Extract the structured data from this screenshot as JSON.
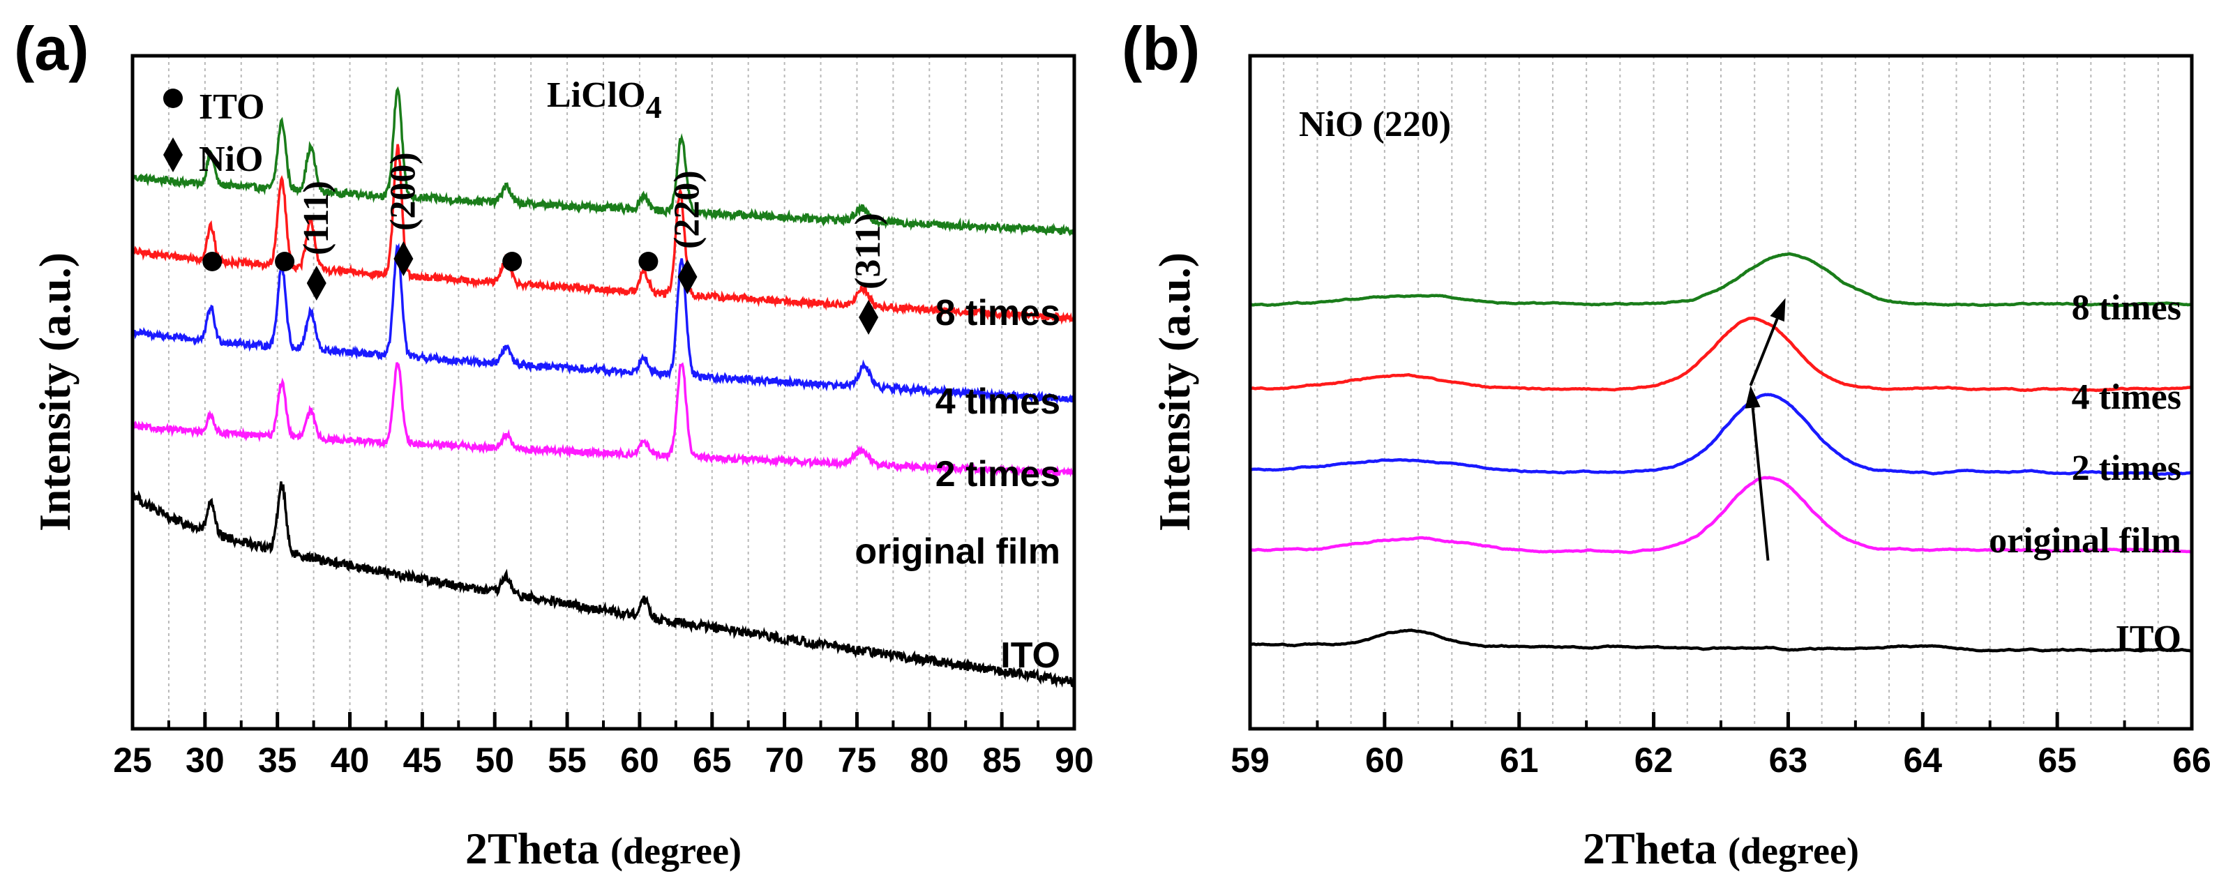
{
  "panels": [
    {
      "panel_label": "(a)",
      "type": "line",
      "xlabel_main": "2Theta",
      "xlabel_unit": "(degree)",
      "ylabel": "Intensity (a.u.)",
      "xlim": [
        25,
        90
      ],
      "ylim": [
        0,
        100
      ],
      "xticks": [
        "25",
        "30",
        "35",
        "40",
        "45",
        "50",
        "55",
        "60",
        "65",
        "70",
        "75",
        "80",
        "85",
        "90"
      ],
      "grid": "vertical dotted at every 2.5 degrees",
      "annotation_text": "LiClO",
      "annotation_sub": "4",
      "legend": [
        {
          "symbol": "circle",
          "label": "ITO"
        },
        {
          "symbol": "diamond",
          "label": "NiO"
        }
      ],
      "series": [
        {
          "name": "8 times",
          "color": "#1a7d1a",
          "baseline": [
            82,
            74
          ],
          "noise": 0.55,
          "peaks": [
            [
              30.4,
              4.5,
              0.25
            ],
            [
              35.3,
              10,
              0.28
            ],
            [
              37.3,
              6.5,
              0.3
            ],
            [
              43.3,
              16,
              0.28
            ],
            [
              50.8,
              2.5,
              0.3
            ],
            [
              60.3,
              2.2,
              0.3
            ],
            [
              62.9,
              11,
              0.3
            ],
            [
              75.3,
              1.8,
              0.4
            ]
          ]
        },
        {
          "name": "4 times",
          "color": "#ff1a1a",
          "baseline": [
            71,
            61
          ],
          "noise": 0.5,
          "peaks": [
            [
              30.4,
              5,
              0.25
            ],
            [
              35.3,
              13,
              0.28
            ],
            [
              37.3,
              7,
              0.3
            ],
            [
              43.3,
              19,
              0.28
            ],
            [
              50.8,
              3.5,
              0.3
            ],
            [
              60.3,
              3,
              0.3
            ],
            [
              62.8,
              15,
              0.3
            ],
            [
              75.4,
              2.5,
              0.4
            ]
          ]
        },
        {
          "name": "2 times",
          "color": "#1a1aff",
          "baseline": [
            59,
            49
          ],
          "noise": 0.5,
          "peaks": [
            [
              30.4,
              5,
              0.25
            ],
            [
              35.3,
              12,
              0.28
            ],
            [
              37.3,
              5.5,
              0.3
            ],
            [
              43.3,
              16,
              0.28
            ],
            [
              50.8,
              2.5,
              0.3
            ],
            [
              60.3,
              2.5,
              0.3
            ],
            [
              62.9,
              17,
              0.3
            ],
            [
              75.5,
              3,
              0.4
            ]
          ]
        },
        {
          "name": "original film",
          "color": "#ff1aff",
          "baseline": [
            45,
            38
          ],
          "noise": 0.45,
          "peaks": [
            [
              30.4,
              2.5,
              0.25
            ],
            [
              35.3,
              8,
              0.28
            ],
            [
              37.3,
              4,
              0.3
            ],
            [
              43.3,
              12,
              0.28
            ],
            [
              50.8,
              2,
              0.3
            ],
            [
              60.3,
              2,
              0.3
            ],
            [
              62.9,
              14,
              0.3
            ],
            [
              75.3,
              2,
              0.5
            ]
          ]
        },
        {
          "name": "ITO",
          "color": "#000000",
          "baseline": [
            32,
            7
          ],
          "noise": 0.7,
          "peaks": [
            [
              30.4,
              4.5,
              0.25
            ],
            [
              35.3,
              10,
              0.28
            ],
            [
              50.8,
              2.5,
              0.3
            ],
            [
              60.3,
              2.5,
              0.3
            ]
          ]
        }
      ],
      "peak_markers": [
        {
          "x": 30.5,
          "symbol": "circle",
          "label": ""
        },
        {
          "x": 35.5,
          "symbol": "circle",
          "label": ""
        },
        {
          "x": 37.7,
          "symbol": "diamond",
          "label": "(111)"
        },
        {
          "x": 43.7,
          "symbol": "diamond",
          "label": "(200)"
        },
        {
          "x": 51.2,
          "symbol": "circle",
          "label": ""
        },
        {
          "x": 60.6,
          "symbol": "circle",
          "label": ""
        },
        {
          "x": 63.3,
          "symbol": "diamond",
          "label": "(220)"
        },
        {
          "x": 75.8,
          "symbol": "diamond",
          "label": "(311)"
        }
      ]
    },
    {
      "panel_label": "(b)",
      "type": "line",
      "xlabel_main": "2Theta",
      "xlabel_unit": "(degree)",
      "ylabel": "Intensity (a.u.)",
      "xlim": [
        59,
        66
      ],
      "ylim": [
        0,
        100
      ],
      "xticks": [
        "59",
        "60",
        "61",
        "62",
        "63",
        "64",
        "65",
        "66"
      ],
      "grid": "vertical dotted at every 0.25 degrees",
      "annotation_text": "NiO (220)",
      "series": [
        {
          "name": "8 times",
          "color": "#1a7d1a",
          "baseline": [
            63,
            63
          ],
          "peak": [
            63.0,
            7.5,
            0.33
          ],
          "bump": [
            60.2,
            1.2,
            0.4
          ]
        },
        {
          "name": "4 times",
          "color": "#ff1a1a",
          "baseline": [
            50.5,
            50.5
          ],
          "peak": [
            62.75,
            10.5,
            0.3
          ],
          "bump": [
            60.1,
            2,
            0.35
          ]
        },
        {
          "name": "2 times",
          "color": "#1a1aff",
          "baseline": [
            38.5,
            38
          ],
          "peak": [
            62.85,
            11.5,
            0.3
          ],
          "bump": [
            60.1,
            1.6,
            0.4
          ]
        },
        {
          "name": "original film",
          "color": "#ff1aff",
          "baseline": [
            26.5,
            26.5
          ],
          "peak": [
            62.85,
            11,
            0.3
          ],
          "bump": [
            60.2,
            1.8,
            0.4
          ]
        },
        {
          "name": "ITO",
          "color": "#000000",
          "baseline": [
            12.5,
            11.5
          ],
          "peak": [
            63.9,
            0.5,
            0.3
          ],
          "bump": [
            60.2,
            2.2,
            0.25
          ]
        }
      ],
      "arrow": {
        "from": [
          62.85,
          25
        ],
        "via": [
          62.72,
          51
        ],
        "to": [
          62.98,
          64
        ]
      }
    }
  ]
}
